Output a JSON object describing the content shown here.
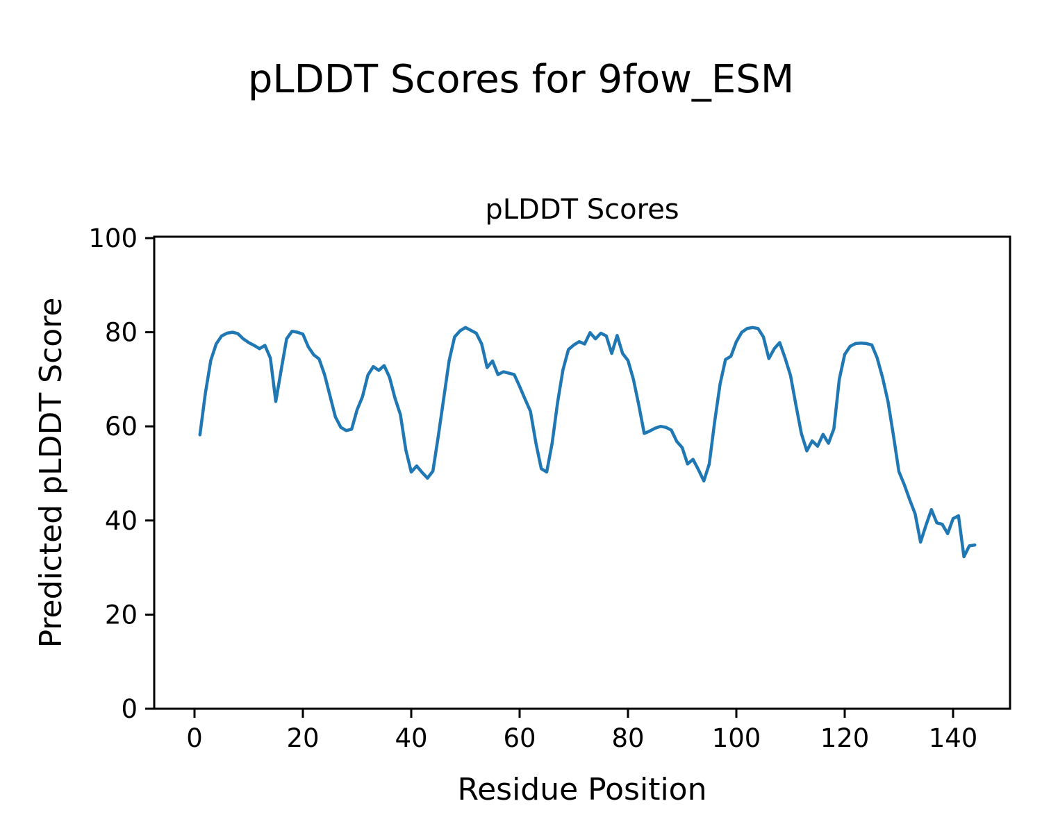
{
  "figure": {
    "title": "pLDDT Scores for 9fow_ESM"
  },
  "chart_data": {
    "type": "line",
    "title": "pLDDT Scores",
    "xlabel": "Residue Position",
    "ylabel": "Predicted pLDDT Score",
    "line_color": "#1f77b4",
    "background_color": "#ffffff",
    "grid": false,
    "legend": false,
    "ylim": [
      0,
      100
    ],
    "xlim": [
      -7.4,
      150.6
    ],
    "xticks": [
      0,
      20,
      40,
      60,
      80,
      100,
      120,
      140
    ],
    "yticks": [
      0,
      20,
      40,
      60,
      80,
      100
    ],
    "x_start": 1,
    "x_step": 1,
    "series_name": "pLDDT",
    "values": [
      58.2,
      67,
      74,
      77.5,
      79.2,
      79.8,
      80,
      79.7,
      78.6,
      77.8,
      77.2,
      76.5,
      77.2,
      74.5,
      65.3,
      72,
      78.6,
      80.2,
      80,
      79.6,
      76.9,
      75.2,
      74.3,
      71,
      66.5,
      62,
      59.8,
      59.1,
      59.4,
      63.5,
      66.3,
      70.9,
      72.7,
      71.9,
      72.9,
      70.4,
      66,
      62.5,
      55,
      50.3,
      51.6,
      50.2,
      49,
      50.5,
      58,
      66,
      74,
      79,
      80.3,
      81,
      80.4,
      79.8,
      77.5,
      72.5,
      73.9,
      71,
      71.6,
      71.3,
      71,
      68.5,
      65.8,
      63.2,
      56.5,
      51,
      50.3,
      56.4,
      65,
      72,
      76.3,
      77.3,
      78,
      77.5,
      79.9,
      78.6,
      79.8,
      79.2,
      75.5,
      79.3,
      75.5,
      74,
      70,
      64.5,
      58.5,
      59,
      59.6,
      60,
      59.8,
      59.2,
      56.8,
      55.5,
      52,
      53,
      50.8,
      48.4,
      52,
      61,
      69,
      74.2,
      74.9,
      78,
      80,
      80.8,
      81,
      80.8,
      79,
      74.4,
      76.5,
      77.8,
      74.5,
      70.8,
      64.5,
      58.5,
      54.8,
      56.9,
      55.8,
      58.3,
      56.4,
      59.5,
      70,
      75.3,
      77,
      77.6,
      77.7,
      77.6,
      77.3,
      74.5,
      70.3,
      65.2,
      58,
      50.4,
      47.6,
      44.4,
      41.4,
      35.4,
      39,
      42.3,
      39.5,
      39.2,
      37.2,
      40.4,
      41,
      32.3,
      34.6,
      34.8
    ]
  }
}
